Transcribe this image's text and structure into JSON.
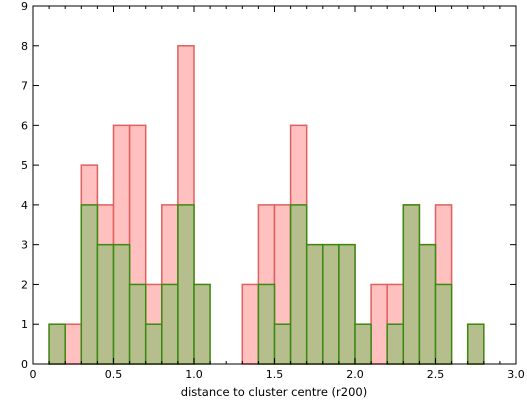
{
  "chart_data": {
    "type": "bar",
    "xlabel": "distance to cluster centre (r200)",
    "ylabel": "",
    "xlim": [
      0,
      3.0
    ],
    "ylim": [
      0,
      9
    ],
    "grid": false,
    "bin_width": 0.1,
    "x_ticks": [
      0,
      0.5,
      1.0,
      1.5,
      2.0,
      2.5,
      3.0
    ],
    "x_tick_labels": [
      "0",
      "0.5",
      "1.0",
      "1.5",
      "2.0",
      "2.5",
      "3.0"
    ],
    "y_ticks": [
      0,
      1,
      2,
      3,
      4,
      5,
      6,
      7,
      8,
      9
    ],
    "y_tick_labels": [
      "0",
      "1",
      "2",
      "3",
      "4",
      "5",
      "6",
      "7",
      "8",
      "9"
    ],
    "series": [
      {
        "color_fill": "#ffc0c0",
        "color_edge": "#e06060",
        "bins": [
          [
            0.1,
            1
          ],
          [
            0.2,
            1
          ],
          [
            0.3,
            5
          ],
          [
            0.4,
            4
          ],
          [
            0.5,
            6
          ],
          [
            0.6,
            6
          ],
          [
            0.7,
            2
          ],
          [
            0.8,
            4
          ],
          [
            0.9,
            8
          ],
          [
            1.0,
            0
          ],
          [
            1.1,
            0
          ],
          [
            1.2,
            0
          ],
          [
            1.3,
            2
          ],
          [
            1.4,
            4
          ],
          [
            1.5,
            4
          ],
          [
            1.6,
            6
          ],
          [
            1.7,
            3
          ],
          [
            1.8,
            3
          ],
          [
            1.9,
            3
          ],
          [
            2.0,
            1
          ],
          [
            2.1,
            2
          ],
          [
            2.2,
            2
          ],
          [
            2.3,
            4
          ],
          [
            2.4,
            3
          ],
          [
            2.5,
            4
          ],
          [
            2.6,
            0
          ],
          [
            2.7,
            1
          ]
        ]
      },
      {
        "color_fill": "#b5be8c",
        "color_edge": "#3a8a10",
        "bins": [
          [
            0.1,
            1
          ],
          [
            0.2,
            0
          ],
          [
            0.3,
            4
          ],
          [
            0.4,
            3
          ],
          [
            0.5,
            3
          ],
          [
            0.6,
            2
          ],
          [
            0.7,
            1
          ],
          [
            0.8,
            2
          ],
          [
            0.9,
            4
          ],
          [
            1.0,
            2
          ],
          [
            1.1,
            0
          ],
          [
            1.2,
            0
          ],
          [
            1.3,
            0
          ],
          [
            1.4,
            2
          ],
          [
            1.5,
            1
          ],
          [
            1.6,
            4
          ],
          [
            1.7,
            3
          ],
          [
            1.8,
            3
          ],
          [
            1.9,
            3
          ],
          [
            2.0,
            1
          ],
          [
            2.1,
            0
          ],
          [
            2.2,
            1
          ],
          [
            2.3,
            4
          ],
          [
            2.4,
            3
          ],
          [
            2.5,
            2
          ],
          [
            2.6,
            0
          ],
          [
            2.7,
            1
          ]
        ]
      }
    ]
  }
}
